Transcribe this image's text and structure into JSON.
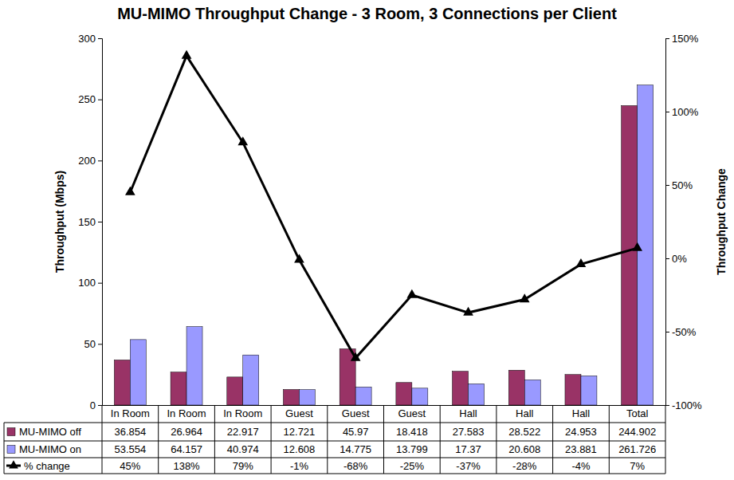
{
  "chart_data": {
    "type": "bar",
    "title": "MU-MIMO Throughput Change - 3 Room, 3 Connections per Client",
    "ylabel": "Throughput (Mbps)",
    "y2label": "Throughput Change",
    "categories": [
      "In Room",
      "In Room",
      "In Room",
      "Guest",
      "Guest",
      "Guest",
      "Hall",
      "Hall",
      "Hall",
      "Total"
    ],
    "ylim": [
      0,
      300
    ],
    "yticks": [
      0,
      50,
      100,
      150,
      200,
      250,
      300
    ],
    "y2lim": [
      -100,
      150
    ],
    "y2ticks": [
      {
        "value": -100,
        "label": "-100%"
      },
      {
        "value": -50,
        "label": "-50%"
      },
      {
        "value": 0,
        "label": "0%"
      },
      {
        "value": 50,
        "label": "50%"
      },
      {
        "value": 100,
        "label": "100%"
      },
      {
        "value": 150,
        "label": "150%"
      }
    ],
    "series": [
      {
        "name": "MU-MIMO off",
        "type": "bar",
        "color": "#993366",
        "values": [
          36.854,
          26.964,
          22.917,
          12.721,
          45.97,
          18.418,
          27.583,
          28.522,
          24.953,
          244.902
        ]
      },
      {
        "name": "MU-MIMO on",
        "type": "bar",
        "color": "#9999ff",
        "values": [
          53.554,
          64.157,
          40.974,
          12.608,
          14.775,
          13.799,
          17.37,
          20.608,
          23.881,
          261.726
        ]
      },
      {
        "name": "% change",
        "type": "line",
        "color": "#000000",
        "marker": "triangle",
        "axis": "y2",
        "values": [
          45,
          138,
          79,
          -1,
          -68,
          -25,
          -37,
          -28,
          -4,
          7
        ],
        "value_labels": [
          "45%",
          "138%",
          "79%",
          "-1%",
          "-68%",
          "-25%",
          "-37%",
          "-28%",
          "-4%",
          "7%"
        ]
      }
    ],
    "legend": "bottom",
    "data_labels": true,
    "grid": false
  }
}
